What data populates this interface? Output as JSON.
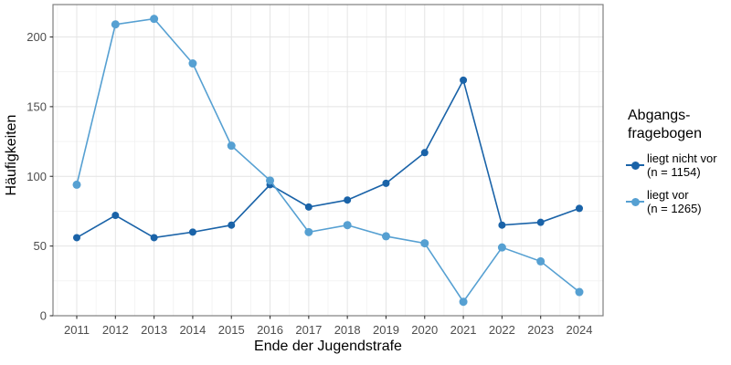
{
  "chart_data": {
    "type": "line",
    "xlabel": "Ende der Jugendstrafe",
    "ylabel": "Häufigkeiten",
    "x": [
      2011,
      2012,
      2013,
      2014,
      2015,
      2016,
      2017,
      2018,
      2019,
      2020,
      2021,
      2022,
      2023,
      2024
    ],
    "series": [
      {
        "name": "liegt nicht vor (n = 1154)",
        "color": "#1a63a8",
        "values": [
          56,
          72,
          56,
          60,
          65,
          94,
          78,
          83,
          95,
          117,
          169,
          65,
          67,
          77
        ]
      },
      {
        "name": "liegt vor (n = 1265)",
        "color": "#56a0d2",
        "values": [
          94,
          209,
          213,
          181,
          122,
          97,
          60,
          65,
          57,
          52,
          10,
          49,
          39,
          17
        ]
      }
    ],
    "yticks": [
      0,
      50,
      100,
      150,
      200
    ],
    "ylim": [
      0,
      223
    ],
    "grid": true,
    "minor_grid": true,
    "legend_position": "right"
  },
  "legend": {
    "title_line1": "Abgangs-",
    "title_line2": "fragebogen",
    "items": [
      {
        "label_line1": "liegt nicht vor",
        "label_line2": "(n = 1154)",
        "color": "#1a63a8"
      },
      {
        "label_line1": "liegt vor",
        "label_line2": "(n = 1265)",
        "color": "#56a0d2"
      }
    ]
  },
  "colors": {
    "grid_major": "#e4e4e4",
    "grid_minor": "#f1f1f1",
    "panel_border": "#7f7f7f",
    "tick_mark": "#333333",
    "tick_label": "#4d4d4d",
    "background": "#ffffff"
  }
}
